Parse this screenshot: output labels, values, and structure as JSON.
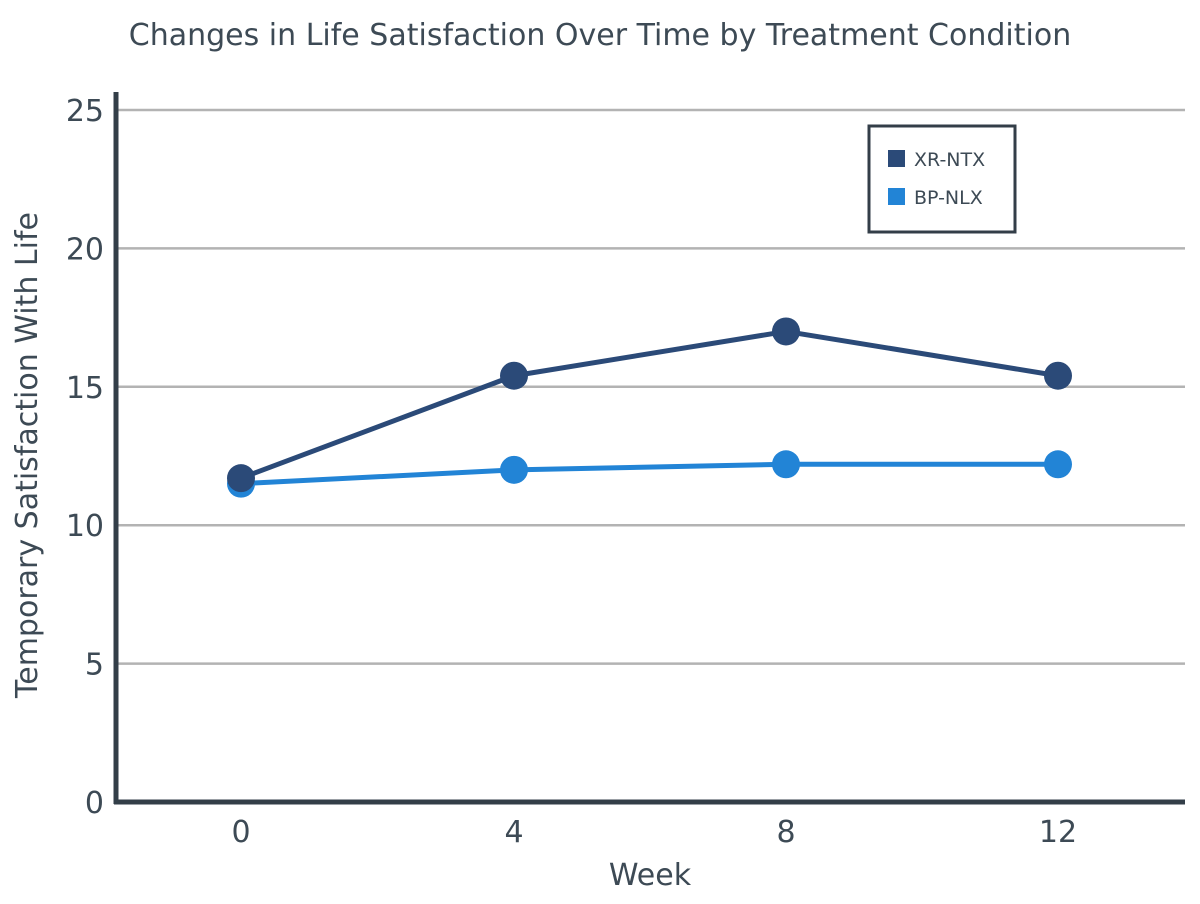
{
  "chart_data": {
    "type": "line",
    "title": "Changes in Life Satisfaction Over Time by Treatment Condition",
    "xlabel": "Week",
    "ylabel": "Temporary Satisfaction With Life",
    "x": [
      0,
      4,
      8,
      12
    ],
    "x_tick_labels": [
      "0",
      "4",
      "8",
      "12"
    ],
    "ylim": [
      0,
      25
    ],
    "y_ticks": [
      0,
      5,
      10,
      15,
      20,
      25
    ],
    "y_tick_labels": [
      "0",
      "5",
      "10",
      "15",
      "20",
      "25"
    ],
    "grid": true,
    "legend_position": "top-right",
    "series": [
      {
        "name": "XR-NTX",
        "color": "#2b4a78",
        "values": [
          11.7,
          15.4,
          17.0,
          15.4
        ]
      },
      {
        "name": "BP-NLX",
        "color": "#2284d6",
        "values": [
          11.5,
          12.0,
          12.2,
          12.2
        ]
      }
    ]
  },
  "colors": {
    "axis": "#333e48",
    "grid": "#b3b3b3",
    "text": "#3d4a55",
    "legend_border": "#333e48"
  }
}
